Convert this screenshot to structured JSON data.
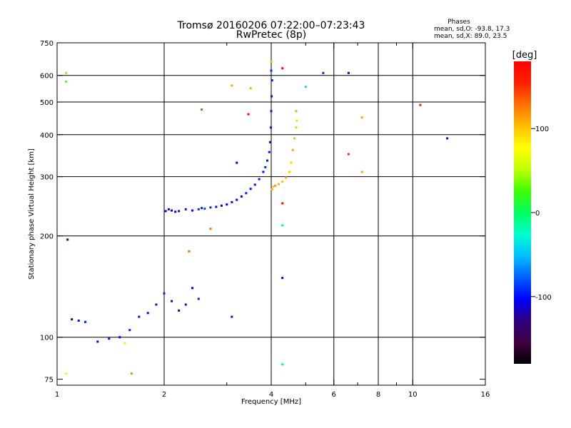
{
  "chart_data": {
    "type": "scatter",
    "title": "Tromsø 20160206 07:22:00–07:23:43",
    "subtitle": "RwPretec (8p)",
    "stats": {
      "header": "Phases",
      "line_o": "mean, sd,O: -93.8, 17.3",
      "line_x": "mean, sd,X:  89.0, 23.5"
    },
    "xlabel": "Frequency [MHz]",
    "ylabel": "Stationary phase Virtual Height [km]",
    "x_scale": "log",
    "y_scale": "log",
    "xlim": [
      1,
      16
    ],
    "ylim": [
      72,
      750
    ],
    "x_ticks": [
      1,
      2,
      4,
      6,
      8,
      10,
      16
    ],
    "x_tick_labels": [
      "1",
      "2",
      "4",
      "6",
      "8",
      "10",
      "16"
    ],
    "x_minor_ticks": [
      3,
      5,
      7,
      9
    ],
    "y_ticks": [
      75,
      100,
      200,
      300,
      400,
      500,
      600,
      750
    ],
    "y_tick_labels": [
      "75",
      "100",
      "200",
      "300",
      "400",
      "500",
      "600",
      "750"
    ],
    "x_grid": [
      2,
      4,
      6,
      8,
      10
    ],
    "y_grid": [
      100,
      200,
      300,
      400,
      500,
      600
    ],
    "grid": true,
    "colorbar": {
      "label": "[deg]",
      "range": [
        -180,
        180
      ],
      "ticks": [
        100,
        0,
        -100
      ],
      "tick_labels": [
        "100",
        "0",
        "-100"
      ],
      "stops": [
        "#000000",
        "#400040",
        "#300080",
        "#0000ff",
        "#0060ff",
        "#00c0ff",
        "#00ffd0",
        "#00ff60",
        "#40ff00",
        "#c0ff00",
        "#ffff00",
        "#ffc000",
        "#ff7000",
        "#ff2000",
        "#ff0000"
      ]
    },
    "series": [
      {
        "values": [
          [
            2.02,
            237,
            -110
          ],
          [
            2.06,
            240,
            -105
          ],
          [
            2.1,
            238,
            -112
          ],
          [
            2.15,
            236,
            -100
          ],
          [
            2.2,
            237,
            -108
          ],
          [
            2.3,
            240,
            -95
          ],
          [
            2.4,
            238,
            -100
          ],
          [
            2.5,
            240,
            -90
          ],
          [
            2.55,
            242,
            -100
          ],
          [
            2.6,
            241,
            -80
          ],
          [
            2.7,
            243,
            -95
          ],
          [
            2.8,
            244,
            -100
          ],
          [
            2.9,
            246,
            -105
          ],
          [
            3.0,
            248,
            -110
          ],
          [
            3.1,
            252,
            -100
          ],
          [
            3.2,
            256,
            -100
          ],
          [
            3.3,
            262,
            -105
          ],
          [
            3.4,
            268,
            -95
          ],
          [
            3.5,
            276,
            -100
          ],
          [
            3.6,
            284,
            -100
          ],
          [
            3.7,
            295,
            -95
          ],
          [
            3.8,
            310,
            -100
          ],
          [
            3.85,
            320,
            -90
          ],
          [
            3.9,
            335,
            -100
          ],
          [
            3.95,
            355,
            -95
          ],
          [
            3.97,
            380,
            -100
          ],
          [
            3.99,
            420,
            -100
          ],
          [
            4.0,
            470,
            -95
          ],
          [
            4.01,
            520,
            -100
          ],
          [
            4.02,
            580,
            -105
          ],
          [
            4.0,
            620,
            -90
          ],
          [
            3.2,
            330,
            -110
          ]
        ]
      },
      {
        "values": [
          [
            4.02,
            275,
            110
          ],
          [
            4.05,
            280,
            100
          ],
          [
            4.1,
            282,
            115
          ],
          [
            4.2,
            285,
            105
          ],
          [
            4.3,
            290,
            100
          ],
          [
            4.4,
            298,
            110
          ],
          [
            4.5,
            310,
            100
          ],
          [
            4.55,
            330,
            95
          ],
          [
            4.6,
            360,
            110
          ],
          [
            4.65,
            390,
            105
          ],
          [
            4.7,
            420,
            100
          ],
          [
            4.72,
            440,
            90
          ]
        ]
      },
      {
        "values": [
          [
            1.1,
            113,
            -110
          ],
          [
            1.15,
            112,
            -100
          ],
          [
            1.2,
            111,
            -95
          ],
          [
            1.3,
            97,
            -110
          ],
          [
            1.4,
            99,
            -100
          ],
          [
            1.5,
            100,
            -105
          ],
          [
            1.6,
            105,
            -95
          ],
          [
            1.7,
            115,
            -100
          ],
          [
            1.8,
            118,
            -110
          ],
          [
            1.9,
            125,
            -100
          ],
          [
            2.0,
            135,
            -95
          ],
          [
            2.1,
            128,
            -100
          ],
          [
            2.2,
            120,
            -110
          ],
          [
            2.3,
            125,
            -100
          ],
          [
            2.4,
            140,
            -105
          ],
          [
            2.5,
            130,
            -95
          ]
        ]
      },
      {
        "values": [
          [
            1.07,
            195,
            -115
          ],
          [
            1.06,
            610,
            40
          ],
          [
            1.06,
            575,
            30
          ],
          [
            1.06,
            78,
            80
          ],
          [
            1.55,
            96,
            60
          ],
          [
            1.62,
            78,
            120
          ],
          [
            2.55,
            475,
            140
          ],
          [
            3.45,
            460,
            170
          ],
          [
            4.0,
            660,
            40
          ],
          [
            4.3,
            630,
            170
          ],
          [
            4.3,
            250,
            170
          ],
          [
            4.3,
            215,
            -10
          ],
          [
            4.3,
            150,
            -110
          ],
          [
            4.3,
            83,
            -10
          ],
          [
            4.7,
            470,
            110
          ],
          [
            5.0,
            555,
            -40
          ],
          [
            5.6,
            610,
            -90
          ],
          [
            6.6,
            610,
            -110
          ],
          [
            6.6,
            350,
            150
          ],
          [
            7.2,
            450,
            110
          ],
          [
            7.2,
            310,
            110
          ],
          [
            10.5,
            490,
            160
          ],
          [
            12.5,
            390,
            -110
          ],
          [
            3.1,
            560,
            110
          ],
          [
            3.5,
            550,
            110
          ],
          [
            3.1,
            115,
            -100
          ],
          [
            2.7,
            210,
            130
          ],
          [
            2.35,
            180,
            130
          ]
        ]
      }
    ]
  }
}
